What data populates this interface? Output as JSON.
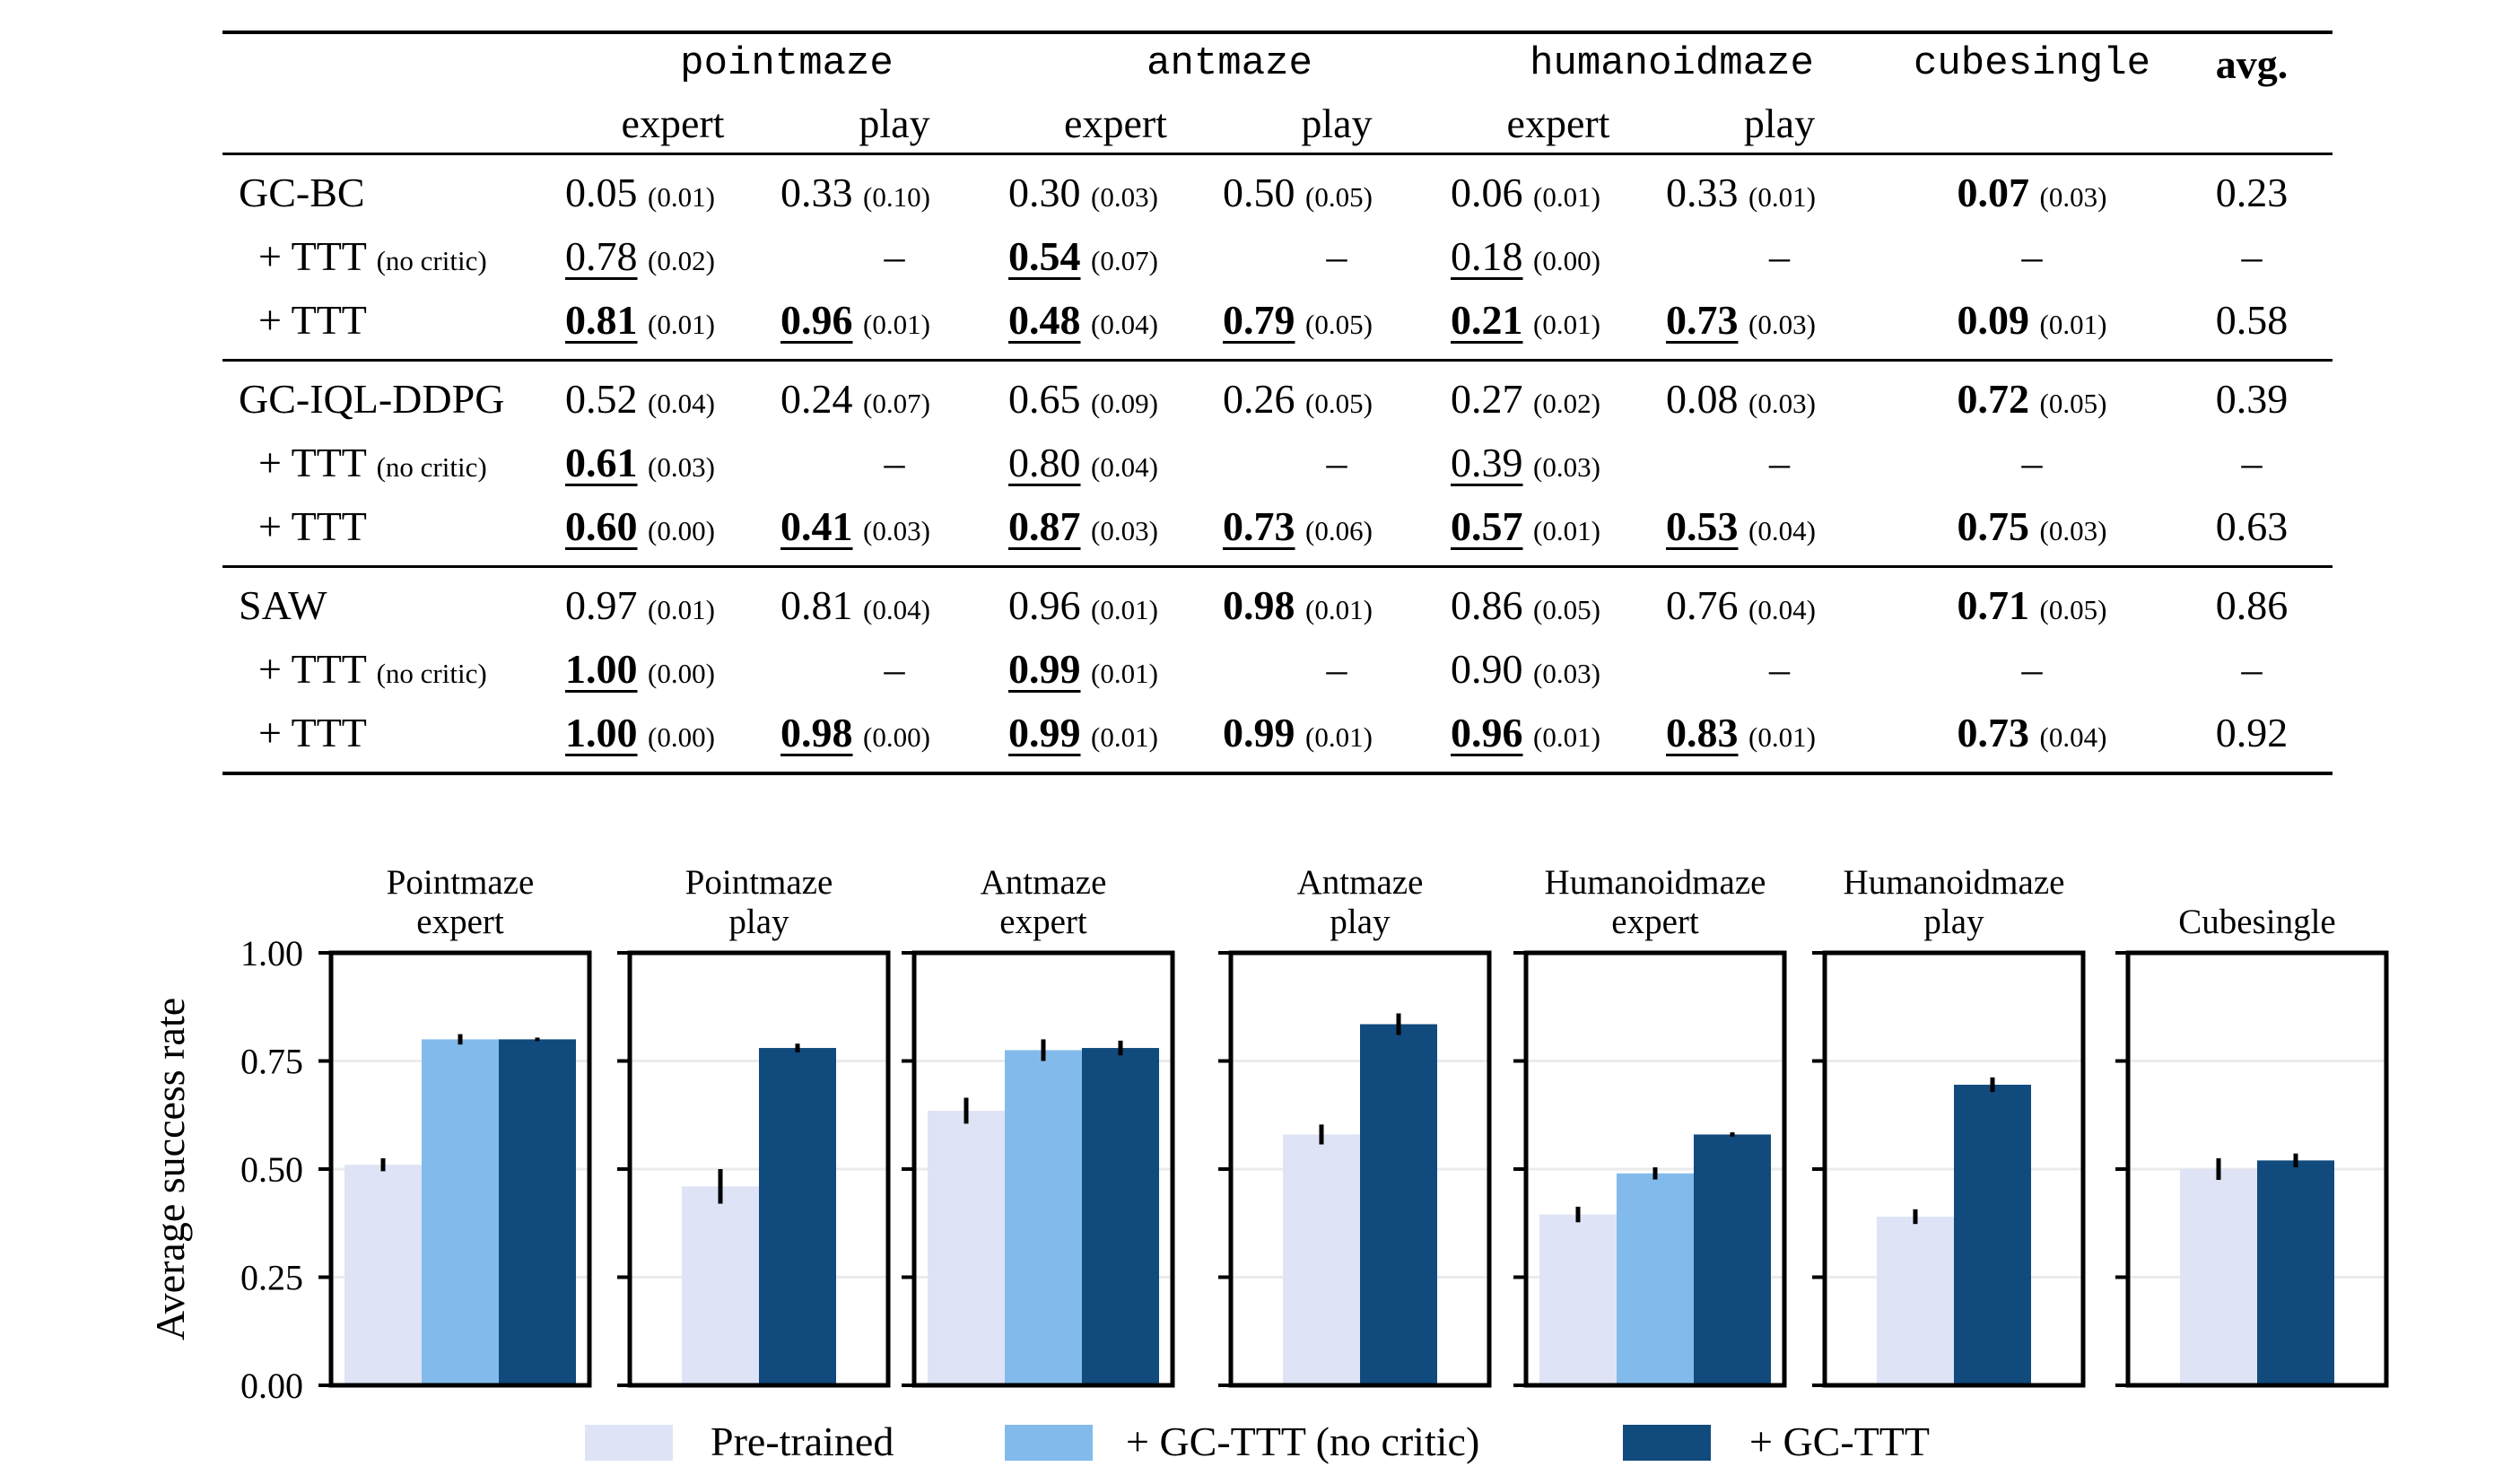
{
  "table": {
    "groups": [
      "pointmaze",
      "antmaze",
      "humanoidmaze",
      "cubesingle",
      "avg."
    ],
    "subheaders": [
      "expert",
      "play",
      "expert",
      "play",
      "expert",
      "play"
    ],
    "methods": [
      {
        "rows": [
          {
            "label": "GC-BC",
            "note": "",
            "cells": [
              {
                "v": "0.05",
                "s": "(0.01)",
                "bold": false,
                "under": false
              },
              {
                "v": "0.33",
                "s": "(0.10)",
                "bold": false,
                "under": false
              },
              {
                "v": "0.30",
                "s": "(0.03)",
                "bold": false,
                "under": false
              },
              {
                "v": "0.50",
                "s": "(0.05)",
                "bold": false,
                "under": false
              },
              {
                "v": "0.06",
                "s": "(0.01)",
                "bold": false,
                "under": false
              },
              {
                "v": "0.33",
                "s": "(0.01)",
                "bold": false,
                "under": false
              },
              {
                "v": "0.07",
                "s": "(0.03)",
                "bold": true,
                "under": false
              }
            ],
            "avg": "0.23"
          },
          {
            "label": "+ TTT",
            "note": "(no critic)",
            "cells": [
              {
                "v": "0.78",
                "s": "(0.02)",
                "bold": false,
                "under": true
              },
              {
                "v": "–",
                "s": "",
                "bold": false,
                "under": false
              },
              {
                "v": "0.54",
                "s": "(0.07)",
                "bold": true,
                "under": true
              },
              {
                "v": "–",
                "s": "",
                "bold": false,
                "under": false
              },
              {
                "v": "0.18",
                "s": "(0.00)",
                "bold": false,
                "under": true
              },
              {
                "v": "–",
                "s": "",
                "bold": false,
                "under": false
              },
              {
                "v": "–",
                "s": "",
                "bold": false,
                "under": false
              }
            ],
            "avg": "–"
          },
          {
            "label": "+ TTT",
            "note": "",
            "cells": [
              {
                "v": "0.81",
                "s": "(0.01)",
                "bold": true,
                "under": true
              },
              {
                "v": "0.96",
                "s": "(0.01)",
                "bold": true,
                "under": true
              },
              {
                "v": "0.48",
                "s": "(0.04)",
                "bold": true,
                "under": true
              },
              {
                "v": "0.79",
                "s": "(0.05)",
                "bold": true,
                "under": true
              },
              {
                "v": "0.21",
                "s": "(0.01)",
                "bold": true,
                "under": true
              },
              {
                "v": "0.73",
                "s": "(0.03)",
                "bold": true,
                "under": true
              },
              {
                "v": "0.09",
                "s": "(0.01)",
                "bold": true,
                "under": false
              }
            ],
            "avg": "0.58"
          }
        ]
      },
      {
        "rows": [
          {
            "label": "GC-IQL-DDPG",
            "note": "",
            "cells": [
              {
                "v": "0.52",
                "s": "(0.04)",
                "bold": false,
                "under": false
              },
              {
                "v": "0.24",
                "s": "(0.07)",
                "bold": false,
                "under": false
              },
              {
                "v": "0.65",
                "s": "(0.09)",
                "bold": false,
                "under": false
              },
              {
                "v": "0.26",
                "s": "(0.05)",
                "bold": false,
                "under": false
              },
              {
                "v": "0.27",
                "s": "(0.02)",
                "bold": false,
                "under": false
              },
              {
                "v": "0.08",
                "s": "(0.03)",
                "bold": false,
                "under": false
              },
              {
                "v": "0.72",
                "s": "(0.05)",
                "bold": true,
                "under": false
              }
            ],
            "avg": "0.39"
          },
          {
            "label": "+ TTT",
            "note": "(no critic)",
            "cells": [
              {
                "v": "0.61",
                "s": "(0.03)",
                "bold": true,
                "under": true
              },
              {
                "v": "–",
                "s": "",
                "bold": false,
                "under": false
              },
              {
                "v": "0.80",
                "s": "(0.04)",
                "bold": false,
                "under": true
              },
              {
                "v": "–",
                "s": "",
                "bold": false,
                "under": false
              },
              {
                "v": "0.39",
                "s": "(0.03)",
                "bold": false,
                "under": true
              },
              {
                "v": "–",
                "s": "",
                "bold": false,
                "under": false
              },
              {
                "v": "–",
                "s": "",
                "bold": false,
                "under": false
              }
            ],
            "avg": "–"
          },
          {
            "label": "+ TTT",
            "note": "",
            "cells": [
              {
                "v": "0.60",
                "s": "(0.00)",
                "bold": true,
                "under": true
              },
              {
                "v": "0.41",
                "s": "(0.03)",
                "bold": true,
                "under": true
              },
              {
                "v": "0.87",
                "s": "(0.03)",
                "bold": true,
                "under": true
              },
              {
                "v": "0.73",
                "s": "(0.06)",
                "bold": true,
                "under": true
              },
              {
                "v": "0.57",
                "s": "(0.01)",
                "bold": true,
                "under": true
              },
              {
                "v": "0.53",
                "s": "(0.04)",
                "bold": true,
                "under": true
              },
              {
                "v": "0.75",
                "s": "(0.03)",
                "bold": true,
                "under": false
              }
            ],
            "avg": "0.63"
          }
        ]
      },
      {
        "rows": [
          {
            "label": "SAW",
            "note": "",
            "cells": [
              {
                "v": "0.97",
                "s": "(0.01)",
                "bold": false,
                "under": false
              },
              {
                "v": "0.81",
                "s": "(0.04)",
                "bold": false,
                "under": false
              },
              {
                "v": "0.96",
                "s": "(0.01)",
                "bold": false,
                "under": false
              },
              {
                "v": "0.98",
                "s": "(0.01)",
                "bold": true,
                "under": false
              },
              {
                "v": "0.86",
                "s": "(0.05)",
                "bold": false,
                "under": false
              },
              {
                "v": "0.76",
                "s": "(0.04)",
                "bold": false,
                "under": false
              },
              {
                "v": "0.71",
                "s": "(0.05)",
                "bold": true,
                "under": false
              }
            ],
            "avg": "0.86"
          },
          {
            "label": "+ TTT",
            "note": "(no critic)",
            "cells": [
              {
                "v": "1.00",
                "s": "(0.00)",
                "bold": true,
                "under": true
              },
              {
                "v": "–",
                "s": "",
                "bold": false,
                "under": false
              },
              {
                "v": "0.99",
                "s": "(0.01)",
                "bold": true,
                "under": true
              },
              {
                "v": "–",
                "s": "",
                "bold": false,
                "under": false
              },
              {
                "v": "0.90",
                "s": "(0.03)",
                "bold": false,
                "under": false
              },
              {
                "v": "–",
                "s": "",
                "bold": false,
                "under": false
              },
              {
                "v": "–",
                "s": "",
                "bold": false,
                "under": false
              }
            ],
            "avg": "–"
          },
          {
            "label": "+ TTT",
            "note": "",
            "cells": [
              {
                "v": "1.00",
                "s": "(0.00)",
                "bold": true,
                "under": true
              },
              {
                "v": "0.98",
                "s": "(0.00)",
                "bold": true,
                "under": true
              },
              {
                "v": "0.99",
                "s": "(0.01)",
                "bold": true,
                "under": true
              },
              {
                "v": "0.99",
                "s": "(0.01)",
                "bold": true,
                "under": false
              },
              {
                "v": "0.96",
                "s": "(0.01)",
                "bold": true,
                "under": true
              },
              {
                "v": "0.83",
                "s": "(0.01)",
                "bold": true,
                "under": true
              },
              {
                "v": "0.73",
                "s": "(0.04)",
                "bold": true,
                "under": false
              }
            ],
            "avg": "0.92"
          }
        ]
      }
    ]
  },
  "chart_data": {
    "type": "bar",
    "ylabel": "Average success rate",
    "ylim": [
      0,
      1
    ],
    "yticks": [
      "0.00",
      "0.25",
      "0.50",
      "0.75",
      "1.00"
    ],
    "grid": true,
    "legend_position": "bottom",
    "series": [
      {
        "name": "Pre-trained",
        "color": "#dfe3f6"
      },
      {
        "name": "+ GC-TTT (no critic)",
        "color": "#82bbeb"
      },
      {
        "name": "+ GC-TTT",
        "color": "#114a7d"
      }
    ],
    "panels": [
      {
        "title": [
          "Pointmaze",
          "expert"
        ],
        "values": [
          0.51,
          0.8,
          0.8
        ],
        "errors": [
          0.015,
          0.012,
          0.004
        ]
      },
      {
        "title": [
          "Pointmaze",
          "play"
        ],
        "values": [
          0.46,
          null,
          0.78
        ],
        "errors": [
          0.04,
          null,
          0.01
        ]
      },
      {
        "title": [
          "Antmaze",
          "expert"
        ],
        "values": [
          0.635,
          0.775,
          0.78
        ],
        "errors": [
          0.03,
          0.025,
          0.017
        ]
      },
      {
        "title": [
          "Antmaze",
          "play"
        ],
        "values": [
          0.58,
          null,
          0.835
        ],
        "errors": [
          0.023,
          null,
          0.025
        ]
      },
      {
        "title": [
          "Humanoidmaze",
          "expert"
        ],
        "values": [
          0.395,
          0.49,
          0.58
        ],
        "errors": [
          0.018,
          0.014,
          0.005
        ]
      },
      {
        "title": [
          "Humanoidmaze",
          "play"
        ],
        "values": [
          0.39,
          null,
          0.695
        ],
        "errors": [
          0.017,
          null,
          0.017
        ]
      },
      {
        "title": [
          "",
          "Cubesingle"
        ],
        "values": [
          0.5,
          null,
          0.52
        ],
        "errors": [
          0.025,
          null,
          0.016
        ]
      }
    ]
  }
}
